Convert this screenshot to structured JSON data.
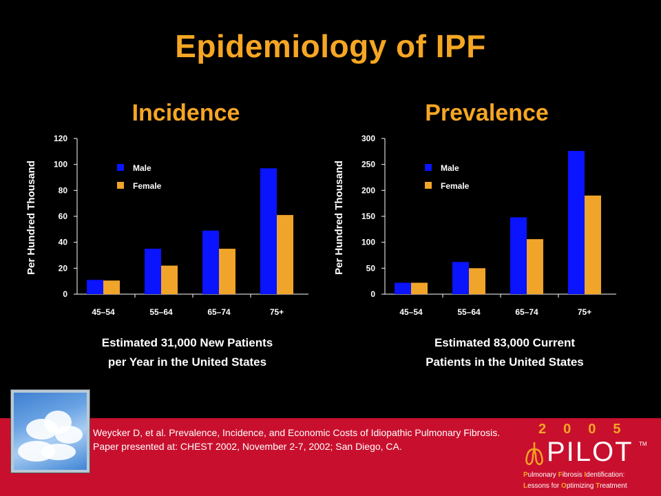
{
  "title": "Epidemiology of IPF",
  "colors": {
    "male": "#0A14FF",
    "female": "#F0A52A",
    "accent": "#F5A623",
    "footer": "#C8102E"
  },
  "chart_data": [
    {
      "type": "bar",
      "title": "Incidence",
      "ylabel": "Per Hundred Thousand",
      "categories": [
        "45–54",
        "55–64",
        "65–74",
        "75+"
      ],
      "series": [
        {
          "name": "Male",
          "values": [
            11,
            35,
            49,
            97
          ]
        },
        {
          "name": "Female",
          "values": [
            10.5,
            22,
            35,
            61
          ]
        }
      ],
      "ylim": [
        0,
        120
      ],
      "yticks": [
        "0",
        "20",
        "40",
        "60",
        "80",
        "100",
        "120"
      ],
      "legend": "top-left",
      "grid": false
    },
    {
      "type": "bar",
      "title": "Prevalence",
      "ylabel": "Per Hundred Thousand",
      "categories": [
        "45–54",
        "55–64",
        "65–74",
        "75+"
      ],
      "series": [
        {
          "name": "Male",
          "values": [
            22,
            62,
            148,
            276
          ]
        },
        {
          "name": "Female",
          "values": [
            22,
            50,
            106,
            190
          ]
        }
      ],
      "ylim": [
        0,
        300
      ],
      "yticks": [
        "0",
        "50",
        "100",
        "150",
        "200",
        "250",
        "300"
      ],
      "legend": "top-left",
      "grid": false
    }
  ],
  "captions": {
    "incidence": [
      "Estimated 31,000 New Patients",
      "per Year in the United States"
    ],
    "prevalence": [
      "Estimated 83,000 Current",
      "Patients in the United States"
    ]
  },
  "citation": "Weycker D, et al. Prevalence, Incidence, and Economic Costs of Idiopathic Pulmonary Fibrosis. Paper presented at: CHEST 2002, November 2-7, 2002; San Diego, CA.",
  "logo": {
    "year": "2005",
    "name": "PILOT",
    "tm": "TM",
    "tagline": [
      [
        [
          "P",
          "ulmonary "
        ],
        [
          "F",
          "ibrosis "
        ],
        [
          "I",
          "dentification:"
        ]
      ],
      [
        [
          "L",
          "essons for "
        ],
        [
          "O",
          "ptimizing "
        ],
        [
          "T",
          "reatment"
        ]
      ]
    ]
  }
}
